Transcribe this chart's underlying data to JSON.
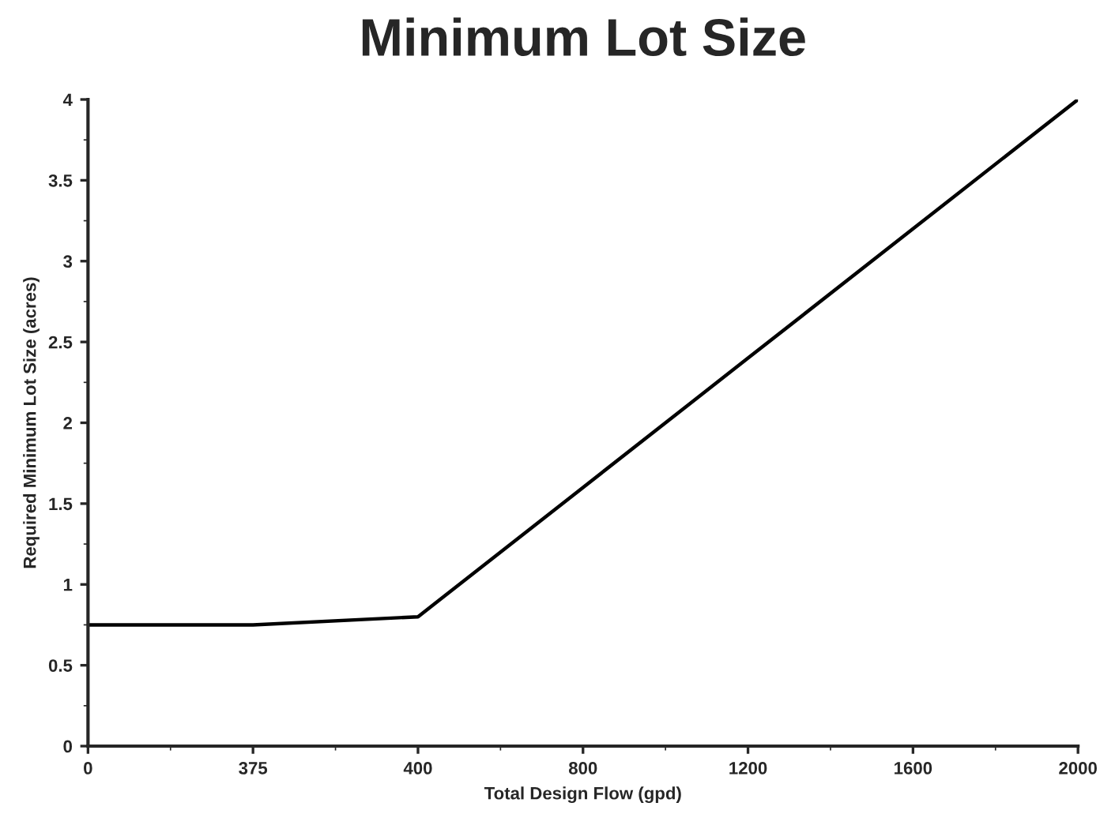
{
  "chart_data": {
    "type": "line",
    "title": "Minimum Lot Size",
    "xlabel": "Total Design Flow (gpd)",
    "ylabel": "Required Minimum Lot Size (acres)",
    "categories": [
      "0",
      "375",
      "400",
      "800",
      "1200",
      "1600",
      "2000"
    ],
    "series": [
      {
        "color": "#000000",
        "values": [
          0.75,
          0.75,
          0.8,
          1.6,
          2.4,
          3.2,
          4
        ]
      }
    ],
    "ylim": [
      0,
      4
    ],
    "yticks": [
      0,
      0.5,
      1,
      1.5,
      2,
      2.5,
      3,
      3.5,
      4
    ],
    "grid": false,
    "legend": false,
    "marker": "none",
    "line_style": "solid"
  }
}
